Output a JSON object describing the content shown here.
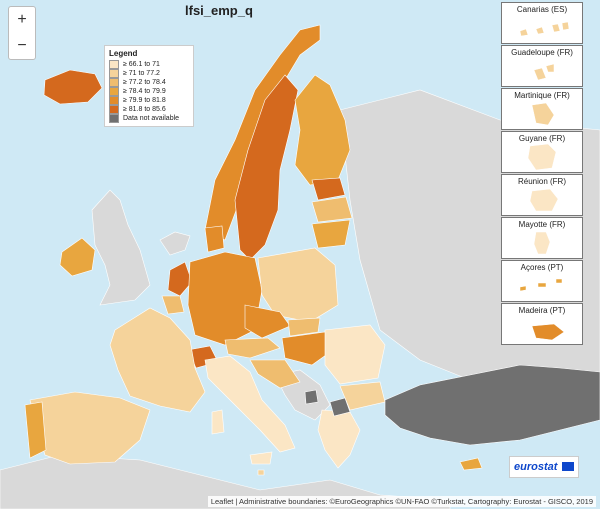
{
  "map": {
    "title": "lfsi_emp_q",
    "legend": {
      "title": "Legend",
      "classes": [
        {
          "label": "≥ 66.1 to 71",
          "color": "#fbe6c5"
        },
        {
          "label": "≥ 71 to 77.2",
          "color": "#f5d39b"
        },
        {
          "label": "≥ 77.2 to 78.4",
          "color": "#efbd6f"
        },
        {
          "label": "≥ 78.4 to 79.9",
          "color": "#e8a63f"
        },
        {
          "label": "≥ 79.9 to 81.8",
          "color": "#e28c2a"
        },
        {
          "label": "≥ 81.8 to 85.6",
          "color": "#d4691e"
        },
        {
          "label": "Data not available",
          "color": "#707070"
        }
      ]
    },
    "insets": [
      {
        "label": "Canarias (ES)"
      },
      {
        "label": "Guadeloupe (FR)"
      },
      {
        "label": "Martinique (FR)"
      },
      {
        "label": "Guyane (FR)"
      },
      {
        "label": "Réunion (FR)"
      },
      {
        "label": "Mayotte (FR)"
      },
      {
        "label": "Açores (PT)"
      },
      {
        "label": "Madeira (PT)"
      }
    ],
    "logo": "eurostat",
    "attribution": "Leaflet | Administrative boundaries: ©EuroGeographics ©UN-FAO ©Turkstat, Cartography: Eurostat - GISCO, 2019"
  }
}
